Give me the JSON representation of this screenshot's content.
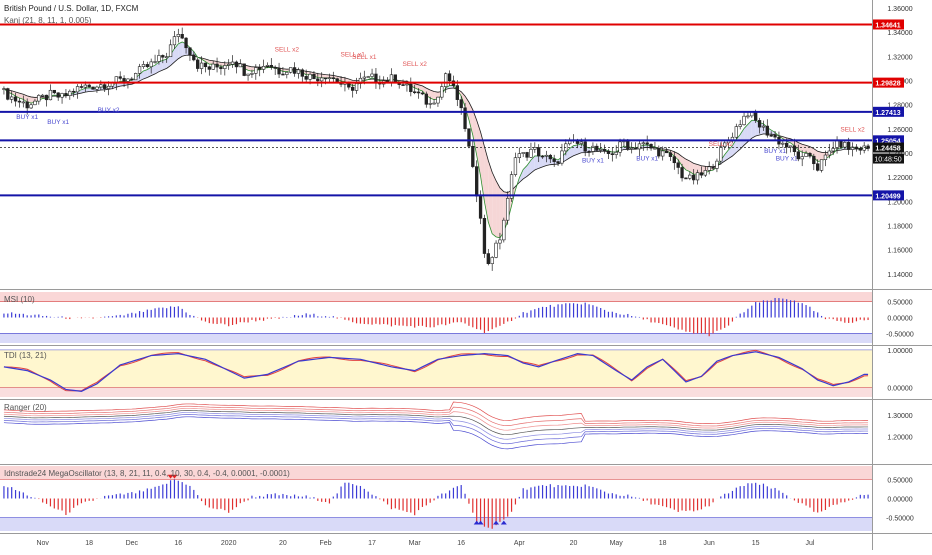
{
  "header": {
    "symbol_title": "British Pound / U.S. Dollar, 1D, FXCM",
    "indicator_title": "Kanj (21, 8, 11, 1, 0.005)"
  },
  "colors": {
    "bull": "#2b2b2b",
    "bear": "#2b2b2b",
    "red_line": "#e00000",
    "blue_line": "#1414a8",
    "price_tag": "#111111",
    "band_red": "#f6caca",
    "band_blue": "#c9cbf3",
    "ma_fast": "#2f8f2f",
    "ma_slow": "#1d1d1d"
  },
  "chart_data": [
    {
      "id": "price",
      "type": "candlestick",
      "title": "British Pound / U.S. Dollar, 1D, FXCM",
      "ylim": [
        1.13,
        1.365
      ],
      "yticks": [
        "1.36000",
        "1.34000",
        "1.32000",
        "1.30000",
        "1.28000",
        "1.26000",
        "1.24000",
        "1.22000",
        "1.20000",
        "1.18000",
        "1.16000",
        "1.14000"
      ],
      "ytick_values": [
        1.36,
        1.34,
        1.32,
        1.3,
        1.28,
        1.26,
        1.24,
        1.22,
        1.2,
        1.18,
        1.16,
        1.14
      ],
      "horizontal_levels": [
        {
          "label": "1.34641",
          "value": 1.34641,
          "color": "red"
        },
        {
          "label": "1.29828",
          "value": 1.29828,
          "color": "red"
        },
        {
          "label": "1.27413",
          "value": 1.27413,
          "color": "blue"
        },
        {
          "label": "1.25054",
          "value": 1.25054,
          "color": "blue"
        },
        {
          "label": "1.20499",
          "value": 1.20499,
          "color": "blue"
        }
      ],
      "last_price": {
        "label": "1.24458",
        "value": 1.24458,
        "timer": "10:48:50"
      },
      "price_path": [
        [
          0,
          1.29
        ],
        [
          3,
          1.284
        ],
        [
          6,
          1.28
        ],
        [
          9,
          1.284
        ],
        [
          12,
          1.288
        ],
        [
          15,
          1.286
        ],
        [
          18,
          1.292
        ],
        [
          21,
          1.295
        ],
        [
          24,
          1.296
        ],
        [
          27,
          1.298
        ],
        [
          30,
          1.3
        ],
        [
          33,
          1.303
        ],
        [
          36,
          1.31
        ],
        [
          39,
          1.315
        ],
        [
          42,
          1.322
        ],
        [
          44,
          1.334
        ],
        [
          45,
          1.34
        ],
        [
          47,
          1.33
        ],
        [
          50,
          1.313
        ],
        [
          53,
          1.31
        ],
        [
          56,
          1.312
        ],
        [
          59,
          1.318
        ],
        [
          62,
          1.308
        ],
        [
          65,
          1.31
        ],
        [
          68,
          1.314
        ],
        [
          71,
          1.308
        ],
        [
          74,
          1.31
        ],
        [
          77,
          1.306
        ],
        [
          80,
          1.302
        ],
        [
          83,
          1.305
        ],
        [
          86,
          1.3
        ],
        [
          89,
          1.292
        ],
        [
          92,
          1.3
        ],
        [
          95,
          1.302
        ],
        [
          98,
          1.3
        ],
        [
          101,
          1.302
        ],
        [
          104,
          1.294
        ],
        [
          107,
          1.288
        ],
        [
          110,
          1.28
        ],
        [
          113,
          1.295
        ],
        [
          114,
          1.306
        ],
        [
          115,
          1.3
        ],
        [
          117,
          1.285
        ],
        [
          119,
          1.262
        ],
        [
          121,
          1.225
        ],
        [
          123,
          1.19
        ],
        [
          124,
          1.155
        ],
        [
          125,
          1.15
        ],
        [
          127,
          1.162
        ],
        [
          128,
          1.17
        ],
        [
          130,
          1.2
        ],
        [
          132,
          1.24
        ],
        [
          134,
          1.238
        ],
        [
          137,
          1.242
        ],
        [
          140,
          1.236
        ],
        [
          142,
          1.23
        ],
        [
          145,
          1.245
        ],
        [
          147,
          1.25
        ],
        [
          149,
          1.246
        ],
        [
          152,
          1.244
        ],
        [
          155,
          1.238
        ],
        [
          158,
          1.242
        ],
        [
          160,
          1.25
        ],
        [
          162,
          1.244
        ],
        [
          164,
          1.248
        ],
        [
          167,
          1.244
        ],
        [
          170,
          1.24
        ],
        [
          173,
          1.232
        ],
        [
          175,
          1.222
        ],
        [
          177,
          1.218
        ],
        [
          179,
          1.22
        ],
        [
          182,
          1.226
        ],
        [
          185,
          1.242
        ],
        [
          188,
          1.256
        ],
        [
          190,
          1.266
        ],
        [
          192,
          1.274
        ],
        [
          194,
          1.266
        ],
        [
          196,
          1.26
        ],
        [
          198,
          1.255
        ],
        [
          200,
          1.25
        ],
        [
          202,
          1.246
        ],
        [
          204,
          1.24
        ],
        [
          206,
          1.234
        ],
        [
          208,
          1.238
        ],
        [
          210,
          1.228
        ],
        [
          212,
          1.236
        ],
        [
          214,
          1.246
        ],
        [
          216,
          1.248
        ],
        [
          218,
          1.244
        ]
      ],
      "signals": [
        {
          "label": "BUY x1",
          "i": 6,
          "v": 1.268
        },
        {
          "label": "BUY x1",
          "i": 14,
          "v": 1.264
        },
        {
          "label": "BUY x2",
          "i": 27,
          "v": 1.274
        },
        {
          "label": "SELL x2",
          "i": 73,
          "v": 1.324
        },
        {
          "label": "SELL x1",
          "i": 90,
          "v": 1.32
        },
        {
          "label": "SELL x1",
          "i": 93,
          "v": 1.318
        },
        {
          "label": "SELL x2",
          "i": 106,
          "v": 1.312
        },
        {
          "label": "BUY x1",
          "i": 152,
          "v": 1.232
        },
        {
          "label": "BUY x1",
          "i": 166,
          "v": 1.234
        },
        {
          "label": "SELL x2",
          "i": 185,
          "v": 1.246
        },
        {
          "label": "BUY x1",
          "i": 199,
          "v": 1.24
        },
        {
          "label": "BUY x1",
          "i": 202,
          "v": 1.234
        },
        {
          "label": "SELL x2",
          "i": 219,
          "v": 1.258
        }
      ]
    },
    {
      "id": "msi",
      "type": "histogram",
      "title": "MSI (10)",
      "ylim": [
        -0.8,
        0.8
      ],
      "yticks": [
        "0.50000",
        "0.00000",
        "-0.50000"
      ],
      "ytick_values": [
        0.5,
        0,
        -0.5
      ],
      "values_path": [
        [
          0,
          0.15
        ],
        [
          10,
          0.05
        ],
        [
          20,
          -0.05
        ],
        [
          30,
          0.05
        ],
        [
          40,
          0.28
        ],
        [
          45,
          0.35
        ],
        [
          48,
          0.1
        ],
        [
          52,
          -0.15
        ],
        [
          58,
          -0.25
        ],
        [
          64,
          -0.1
        ],
        [
          70,
          -0.05
        ],
        [
          78,
          0.1
        ],
        [
          84,
          0.05
        ],
        [
          90,
          -0.15
        ],
        [
          100,
          -0.25
        ],
        [
          110,
          -0.3
        ],
        [
          118,
          -0.15
        ],
        [
          124,
          -0.45
        ],
        [
          128,
          -0.3
        ],
        [
          134,
          0.15
        ],
        [
          140,
          0.35
        ],
        [
          146,
          0.42
        ],
        [
          150,
          0.45
        ],
        [
          156,
          0.2
        ],
        [
          162,
          0.05
        ],
        [
          168,
          -0.15
        ],
        [
          176,
          -0.45
        ],
        [
          182,
          -0.55
        ],
        [
          186,
          -0.35
        ],
        [
          190,
          0.1
        ],
        [
          194,
          0.45
        ],
        [
          200,
          0.6
        ],
        [
          204,
          0.55
        ],
        [
          208,
          0.3
        ],
        [
          212,
          -0.05
        ],
        [
          218,
          -0.15
        ],
        [
          222,
          -0.08
        ]
      ]
    },
    {
      "id": "tdi",
      "type": "line",
      "title": "TDI (13, 21)",
      "ylim": [
        -0.25,
        1.05
      ],
      "yticks": [
        "1.00000",
        "0.00000"
      ],
      "ytick_values": [
        1.0,
        0.0
      ],
      "series_path": [
        [
          0,
          0.55
        ],
        [
          6,
          0.45
        ],
        [
          12,
          0.2
        ],
        [
          16,
          -0.05
        ],
        [
          20,
          -0.1
        ],
        [
          24,
          0.1
        ],
        [
          30,
          0.6
        ],
        [
          38,
          0.85
        ],
        [
          45,
          0.9
        ],
        [
          52,
          0.75
        ],
        [
          58,
          0.45
        ],
        [
          62,
          0.25
        ],
        [
          68,
          0.35
        ],
        [
          76,
          0.7
        ],
        [
          84,
          0.8
        ],
        [
          92,
          0.75
        ],
        [
          100,
          0.55
        ],
        [
          106,
          0.45
        ],
        [
          112,
          0.75
        ],
        [
          118,
          0.85
        ],
        [
          124,
          0.9
        ],
        [
          130,
          0.85
        ],
        [
          134,
          0.65
        ],
        [
          138,
          0.55
        ],
        [
          142,
          0.7
        ],
        [
          148,
          0.9
        ],
        [
          152,
          0.85
        ],
        [
          158,
          0.45
        ],
        [
          162,
          0.2
        ],
        [
          166,
          0.55
        ],
        [
          170,
          0.75
        ],
        [
          176,
          0.15
        ],
        [
          180,
          0.3
        ],
        [
          184,
          0.7
        ],
        [
          188,
          0.85
        ],
        [
          194,
          0.95
        ],
        [
          200,
          0.8
        ],
        [
          206,
          0.5
        ],
        [
          210,
          0.2
        ],
        [
          214,
          0.05
        ],
        [
          218,
          0.15
        ],
        [
          222,
          0.35
        ]
      ]
    },
    {
      "id": "ranger",
      "type": "bands",
      "title": "Ranger (20)",
      "ylim": [
        1.08,
        1.36
      ],
      "yticks": [
        "1.30000",
        "1.20000"
      ],
      "ytick_values": [
        1.3,
        1.2
      ]
    },
    {
      "id": "mega",
      "type": "histogram",
      "title": "Idnstrade24 MegaOscillator (13, 8, 21, 11, 0.4, 10, 30, 0.4, -0.4, 0.0001, -0.0001)",
      "ylim": [
        -0.85,
        0.85
      ],
      "yticks": [
        "0.50000",
        "0.00000",
        "-0.50000"
      ],
      "ytick_values": [
        0.5,
        0,
        -0.5
      ],
      "values_path": [
        [
          0,
          0.35
        ],
        [
          6,
          0.1
        ],
        [
          12,
          -0.2
        ],
        [
          16,
          -0.4
        ],
        [
          20,
          -0.15
        ],
        [
          26,
          0.05
        ],
        [
          34,
          0.15
        ],
        [
          40,
          0.3
        ],
        [
          44,
          0.5
        ],
        [
          48,
          0.35
        ],
        [
          52,
          -0.2
        ],
        [
          58,
          -0.35
        ],
        [
          64,
          0.05
        ],
        [
          70,
          0.1
        ],
        [
          78,
          0.05
        ],
        [
          84,
          -0.1
        ],
        [
          88,
          0.4
        ],
        [
          92,
          0.35
        ],
        [
          100,
          -0.25
        ],
        [
          106,
          -0.4
        ],
        [
          112,
          0.05
        ],
        [
          118,
          0.35
        ],
        [
          122,
          -0.6
        ],
        [
          126,
          -0.8
        ],
        [
          130,
          -0.5
        ],
        [
          134,
          0.25
        ],
        [
          140,
          0.35
        ],
        [
          146,
          0.3
        ],
        [
          150,
          0.35
        ],
        [
          156,
          0.15
        ],
        [
          162,
          0.05
        ],
        [
          168,
          -0.15
        ],
        [
          174,
          -0.35
        ],
        [
          180,
          -0.3
        ],
        [
          186,
          0.1
        ],
        [
          192,
          0.4
        ],
        [
          196,
          0.35
        ],
        [
          200,
          0.2
        ],
        [
          206,
          -0.15
        ],
        [
          210,
          -0.4
        ],
        [
          216,
          -0.1
        ],
        [
          222,
          0.1
        ]
      ]
    }
  ],
  "x_axis": {
    "labels": [
      {
        "text": "Nov",
        "i": 10
      },
      {
        "text": "18",
        "i": 22
      },
      {
        "text": "Dec",
        "i": 33
      },
      {
        "text": "16",
        "i": 45
      },
      {
        "text": "2020",
        "i": 58
      },
      {
        "text": "20",
        "i": 72
      },
      {
        "text": "Feb",
        "i": 83
      },
      {
        "text": "17",
        "i": 95
      },
      {
        "text": "Mar",
        "i": 106
      },
      {
        "text": "16",
        "i": 118
      },
      {
        "text": "Apr",
        "i": 133
      },
      {
        "text": "20",
        "i": 147
      },
      {
        "text": "May",
        "i": 158
      },
      {
        "text": "18",
        "i": 170
      },
      {
        "text": "Jun",
        "i": 182
      },
      {
        "text": "15",
        "i": 194
      },
      {
        "text": "Jul",
        "i": 208
      }
    ],
    "count": 224
  }
}
